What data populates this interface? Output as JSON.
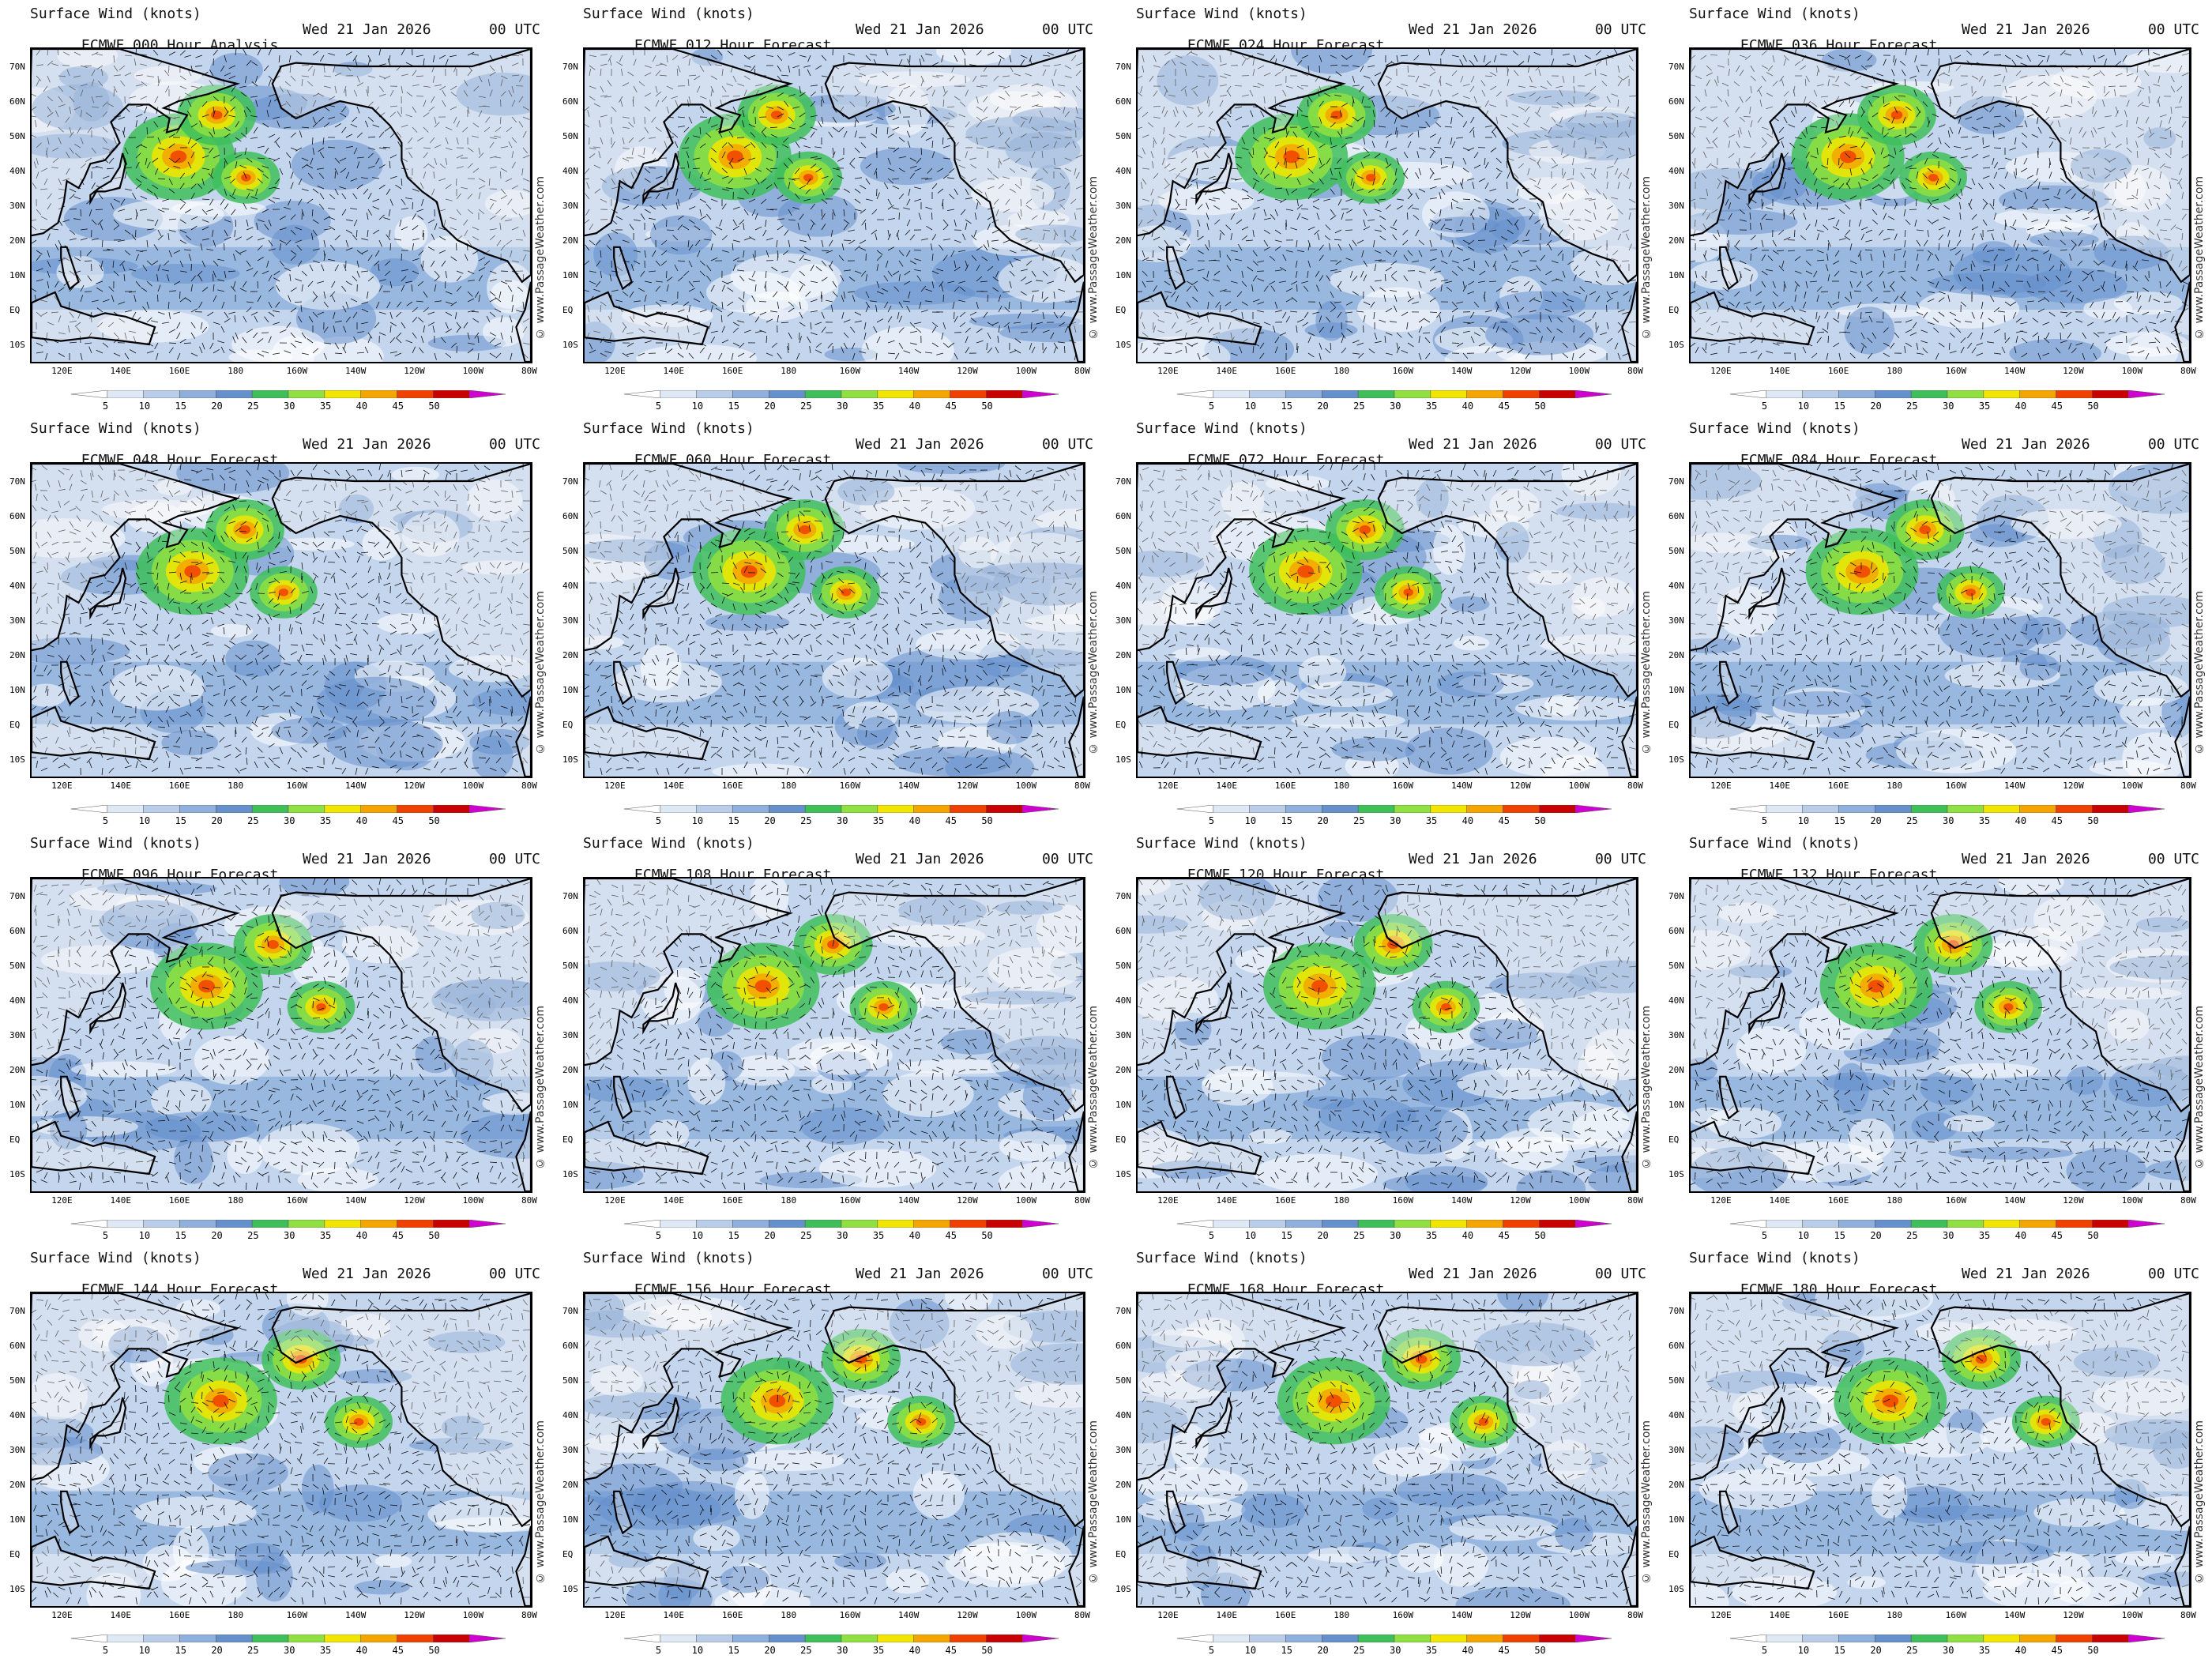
{
  "figure": {
    "panels": [
      {
        "variable": "Surface Wind (knots)",
        "model_run": "ECMWF 000 Hour Analysis",
        "date": "Wed 21 Jan 2026",
        "time": "00 UTC",
        "forecast_hour": 0
      },
      {
        "variable": "Surface Wind (knots)",
        "model_run": "ECMWF 012 Hour Forecast",
        "date": "Wed 21 Jan 2026",
        "time": "00 UTC",
        "forecast_hour": 12
      },
      {
        "variable": "Surface Wind (knots)",
        "model_run": "ECMWF 024 Hour Forecast",
        "date": "Wed 21 Jan 2026",
        "time": "00 UTC",
        "forecast_hour": 24
      },
      {
        "variable": "Surface Wind (knots)",
        "model_run": "ECMWF 036 Hour Forecast",
        "date": "Wed 21 Jan 2026",
        "time": "00 UTC",
        "forecast_hour": 36
      },
      {
        "variable": "Surface Wind (knots)",
        "model_run": "ECMWF 048 Hour Forecast",
        "date": "Wed 21 Jan 2026",
        "time": "00 UTC",
        "forecast_hour": 48
      },
      {
        "variable": "Surface Wind (knots)",
        "model_run": "ECMWF 060 Hour Forecast",
        "date": "Wed 21 Jan 2026",
        "time": "00 UTC",
        "forecast_hour": 60
      },
      {
        "variable": "Surface Wind (knots)",
        "model_run": "ECMWF 072 Hour Forecast",
        "date": "Wed 21 Jan 2026",
        "time": "00 UTC",
        "forecast_hour": 72
      },
      {
        "variable": "Surface Wind (knots)",
        "model_run": "ECMWF 084 Hour Forecast",
        "date": "Wed 21 Jan 2026",
        "time": "00 UTC",
        "forecast_hour": 84
      },
      {
        "variable": "Surface Wind (knots)",
        "model_run": "ECMWF 096 Hour Forecast",
        "date": "Wed 21 Jan 2026",
        "time": "00 UTC",
        "forecast_hour": 96
      },
      {
        "variable": "Surface Wind (knots)",
        "model_run": "ECMWF 108 Hour Forecast",
        "date": "Wed 21 Jan 2026",
        "time": "00 UTC",
        "forecast_hour": 108
      },
      {
        "variable": "Surface Wind (knots)",
        "model_run": "ECMWF 120 Hour Forecast",
        "date": "Wed 21 Jan 2026",
        "time": "00 UTC",
        "forecast_hour": 120
      },
      {
        "variable": "Surface Wind (knots)",
        "model_run": "ECMWF 132 Hour Forecast",
        "date": "Wed 21 Jan 2026",
        "time": "00 UTC",
        "forecast_hour": 132
      },
      {
        "variable": "Surface Wind (knots)",
        "model_run": "ECMWF 144 Hour Forecast",
        "date": "Wed 21 Jan 2026",
        "time": "00 UTC",
        "forecast_hour": 144
      },
      {
        "variable": "Surface Wind (knots)",
        "model_run": "ECMWF 156 Hour Forecast",
        "date": "Wed 21 Jan 2026",
        "time": "00 UTC",
        "forecast_hour": 156
      },
      {
        "variable": "Surface Wind (knots)",
        "model_run": "ECMWF 168 Hour Forecast",
        "date": "Wed 21 Jan 2026",
        "time": "00 UTC",
        "forecast_hour": 168
      },
      {
        "variable": "Surface Wind (knots)",
        "model_run": "ECMWF 180 Hour Forecast",
        "date": "Wed 21 Jan 2026",
        "time": "00 UTC",
        "forecast_hour": 180
      }
    ],
    "latitude_labels": [
      "70N",
      "60N",
      "50N",
      "40N",
      "30N",
      "20N",
      "10N",
      "EQ",
      "10S"
    ],
    "longitude_labels": [
      "120E",
      "140E",
      "160E",
      "180",
      "160W",
      "140W",
      "120W",
      "100W",
      "80W"
    ],
    "watermark": "© www.PassageWeather.com",
    "colorbar": {
      "ticks": [
        "5",
        "10",
        "15",
        "20",
        "25",
        "30",
        "35",
        "40",
        "45",
        "50"
      ],
      "colors": [
        "#ffffff",
        "#dfe9f6",
        "#b9cce8",
        "#8fb0dc",
        "#6690cc",
        "#3fbf5a",
        "#8fe040",
        "#f2e600",
        "#f5a500",
        "#f04000",
        "#c80000",
        "#d000d0"
      ]
    }
  }
}
